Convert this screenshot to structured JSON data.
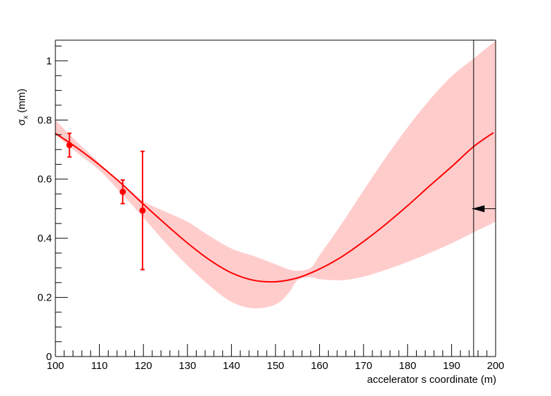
{
  "chart_data": {
    "type": "line",
    "xlabel": "accelerator s coordinate (m)",
    "ylabel": {
      "main": "σ",
      "sub": "x",
      "unit": "(mm)"
    },
    "xlim": [
      100,
      200
    ],
    "ylim": [
      0,
      1.07
    ],
    "x_ticks": [
      "100",
      "110",
      "120",
      "130",
      "140",
      "150",
      "160",
      "170",
      "180",
      "190",
      "200"
    ],
    "y_ticks": [
      "0",
      "0.2",
      "0.4",
      "0.6",
      "0.8",
      "1"
    ],
    "grid": false,
    "colors": {
      "fit": "#ff0000",
      "band": "#ffcccc",
      "points": "#ff0000",
      "axis": "#000000"
    },
    "fit_curve": {
      "x": [
        100,
        105,
        110,
        115,
        120,
        125,
        130,
        135,
        140,
        145,
        150,
        155,
        160,
        165,
        170,
        175,
        180,
        185,
        190,
        195,
        199.5
      ],
      "y": [
        0.755,
        0.705,
        0.648,
        0.585,
        0.515,
        0.448,
        0.384,
        0.327,
        0.283,
        0.258,
        0.253,
        0.266,
        0.296,
        0.337,
        0.389,
        0.447,
        0.51,
        0.577,
        0.642,
        0.71,
        0.757
      ]
    },
    "error_band": {
      "x": [
        100,
        105,
        110,
        115,
        120,
        125,
        130,
        135,
        140,
        145,
        150,
        153,
        155,
        158,
        160,
        165,
        170,
        175,
        180,
        185,
        190,
        195,
        200
      ],
      "upper": [
        0.8,
        0.725,
        0.655,
        0.585,
        0.525,
        0.49,
        0.456,
        0.408,
        0.365,
        0.34,
        0.312,
        0.295,
        0.29,
        0.3,
        0.342,
        0.448,
        0.562,
        0.672,
        0.775,
        0.868,
        0.948,
        1.008,
        1.068
      ],
      "lower": [
        0.75,
        0.688,
        0.63,
        0.552,
        0.47,
        0.385,
        0.308,
        0.24,
        0.185,
        0.163,
        0.176,
        0.215,
        0.258,
        0.268,
        0.262,
        0.258,
        0.27,
        0.293,
        0.32,
        0.35,
        0.383,
        0.42,
        0.456
      ]
    },
    "data_points": [
      {
        "x": 103.2,
        "y": 0.715,
        "err": 0.04
      },
      {
        "x": 115.3,
        "y": 0.557,
        "err": 0.04
      },
      {
        "x": 119.8,
        "y": 0.494,
        "err": 0.2
      }
    ],
    "marker_line": {
      "x": 195
    },
    "arrow_marker": {
      "x": 200,
      "y": 0.5,
      "direction": "left"
    }
  }
}
